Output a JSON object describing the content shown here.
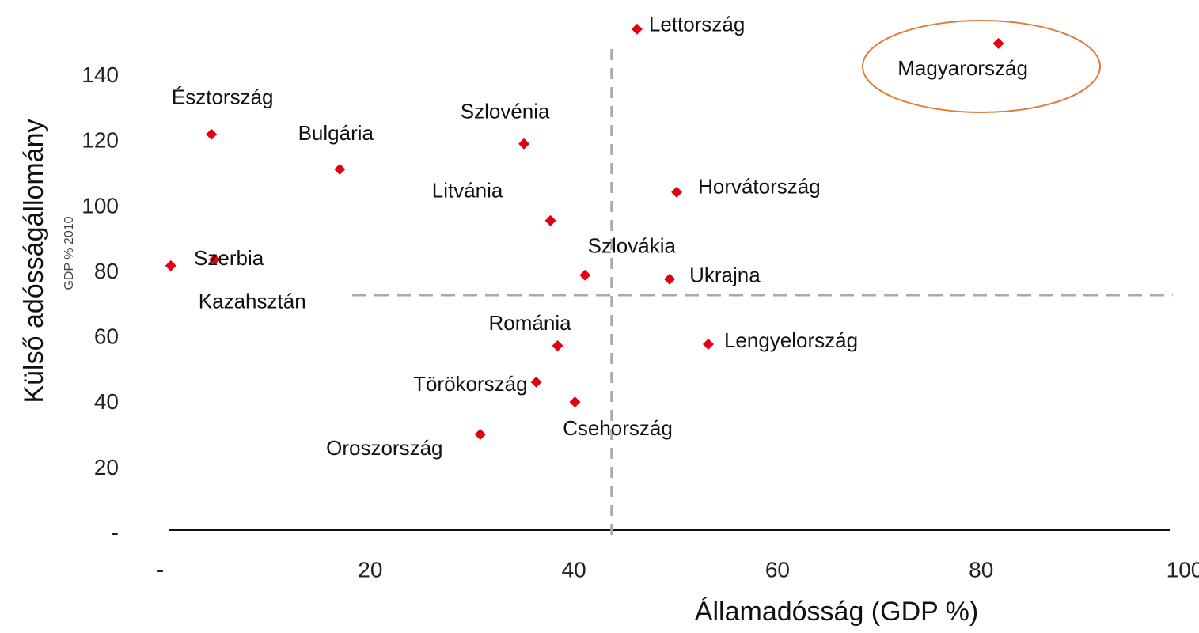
{
  "chart_data": {
    "type": "scatter",
    "x_label": "Államadósság (GDP %)",
    "y_label": "Külső adósságállomány",
    "y_sublabel": "GDP % 2010",
    "labels": [
      "Lettország",
      "Magyarország",
      "Észtország",
      "Bulgária",
      "Szlovénia",
      "Horvátország",
      "Litvánia",
      "Szerbia",
      "Kazahsztán",
      "Szlovákia",
      "Ukrajna",
      "Románia",
      "Lengyelország",
      "Törökország",
      "Csehország",
      "Oroszország"
    ],
    "x": [
      46.2,
      81.7,
      4.4,
      17.0,
      35.1,
      50.1,
      37.7,
      4.7,
      0.4,
      41.1,
      49.4,
      38.4,
      53.2,
      36.3,
      40.1,
      30.8
    ],
    "values": [
      154.5,
      150.1,
      122.3,
      111.6,
      119.4,
      104.6,
      95.9,
      84.0,
      82.1,
      79.2,
      78.0,
      57.6,
      58.1,
      46.5,
      40.4,
      30.5
    ],
    "color": "#e3000f",
    "vline": 43.7,
    "hline": 73.1,
    "xlim": [
      0,
      100
    ],
    "ylim": [
      0,
      160
    ],
    "xticks": [
      {
        "value": 0,
        "label": "-"
      },
      20,
      40,
      60,
      80,
      100
    ],
    "yticks": [
      {
        "value": 0,
        "label": "-"
      },
      20,
      40,
      60,
      80,
      100,
      120,
      140
    ]
  }
}
